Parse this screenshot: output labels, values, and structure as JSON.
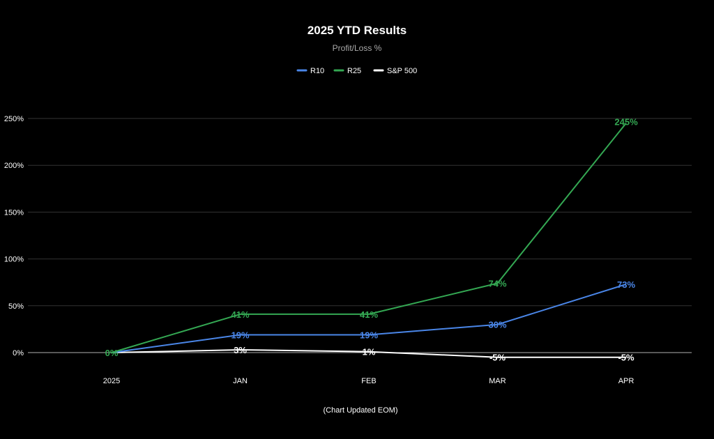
{
  "chart_data": {
    "type": "line",
    "title": "2025 YTD Results",
    "subtitle": "Profit/Loss %",
    "caption": "(Chart Updated EOM)",
    "xlabel": "",
    "ylabel": "",
    "categories": [
      "2025",
      "JAN",
      "FEB",
      "MAR",
      "APR"
    ],
    "ylim": [
      0,
      250
    ],
    "yticks": [
      0,
      50,
      100,
      150,
      200,
      250
    ],
    "ytick_labels": [
      "0%",
      "50%",
      "100%",
      "150%",
      "200%",
      "250%"
    ],
    "grid": true,
    "legend_position": "top-center",
    "series": [
      {
        "name": "R10",
        "color": "#4a86e8",
        "values": [
          0,
          19,
          19,
          30,
          73
        ],
        "labels": [
          "",
          "19%",
          "19%",
          "30%",
          "73%"
        ]
      },
      {
        "name": "R25",
        "color": "#34a853",
        "values": [
          0,
          41,
          41,
          74,
          245
        ],
        "labels": [
          "0%",
          "41%",
          "41%",
          "74%",
          "245%"
        ]
      },
      {
        "name": "S&P 500",
        "color": "#ffffff",
        "values": [
          0,
          3,
          1,
          -5,
          -5
        ],
        "labels": [
          "",
          "3%",
          "1%",
          "-5%",
          "-5%"
        ]
      }
    ]
  }
}
